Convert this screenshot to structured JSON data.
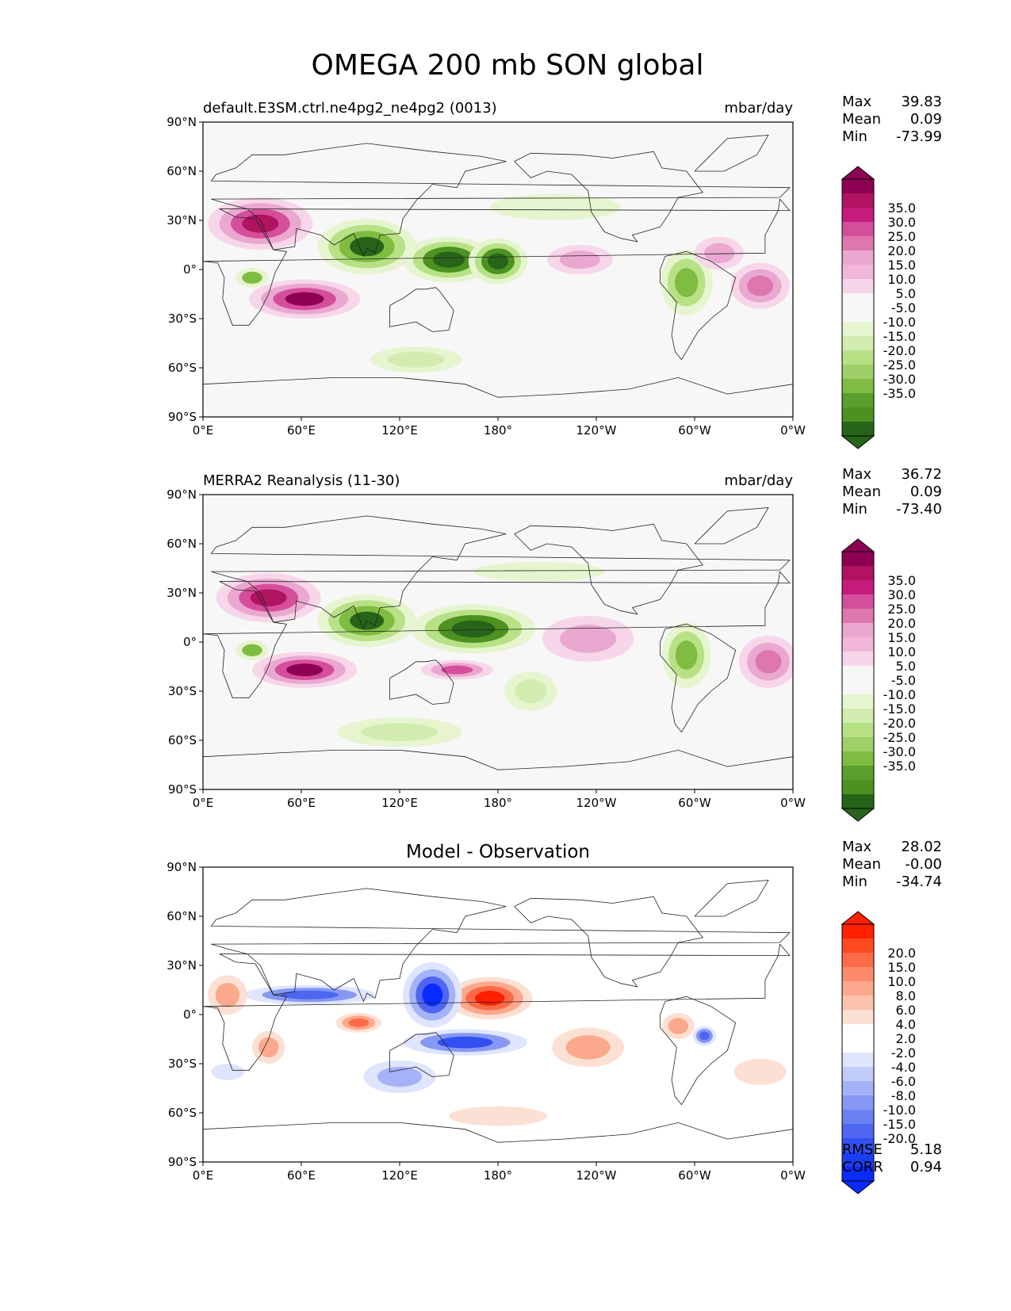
{
  "title": "OMEGA 200 mb SON global",
  "x_ticks": [
    "0°E",
    "60°E",
    "120°E",
    "180°",
    "120°W",
    "60°W",
    "0°W"
  ],
  "y_ticks": [
    "90°N",
    "60°N",
    "30°N",
    "0°",
    "30°S",
    "60°S",
    "90°S"
  ],
  "panels": [
    {
      "title_left": "default.E3SM.ctrl.ne4pg2_ne4pg2 (0013)",
      "title_center": "",
      "title_right": "mbar/day",
      "stats": {
        "labels": [
          "Max",
          "Mean",
          "Min"
        ],
        "values": [
          "39.83",
          "0.09",
          "-73.99"
        ]
      },
      "cbar_ticks": [
        "35.0",
        "30.0",
        "25.0",
        "20.0",
        "15.0",
        "10.0",
        "5.0",
        "-5.0",
        "-10.0",
        "-15.0",
        "-20.0",
        "-25.0",
        "-30.0",
        "-35.0"
      ],
      "cbar_colors": [
        "#8e0152",
        "#b0135f",
        "#c51b7d",
        "#d54e9c",
        "#de77ae",
        "#eaa8d0",
        "#f1b6da",
        "#f7d6ea",
        "#f7f7f7",
        "#f7f7f7",
        "#e6f5d0",
        "#d2ecb0",
        "#b8e186",
        "#9fcf68",
        "#7fbc41",
        "#5a9e2d",
        "#4d9221",
        "#276419"
      ],
      "cbar_top": "#8e0152",
      "cbar_bottom": "#276419",
      "blobs": [
        {
          "lon": 35,
          "lat": 28,
          "rx": 32,
          "ry": 16,
          "levels": [
            "#f7d6ea",
            "#eaa8d0",
            "#d54e9c",
            "#b0135f"
          ]
        },
        {
          "lon": 62,
          "lat": -18,
          "rx": 34,
          "ry": 12,
          "levels": [
            "#f7d6ea",
            "#eaa8d0",
            "#d54e9c",
            "#8e0152"
          ]
        },
        {
          "lon": 100,
          "lat": 14,
          "rx": 30,
          "ry": 17,
          "levels": [
            "#e6f5d0",
            "#b8e186",
            "#7fbc41",
            "#276419"
          ]
        },
        {
          "lon": 150,
          "lat": 6,
          "rx": 28,
          "ry": 14,
          "levels": [
            "#e6f5d0",
            "#b8e186",
            "#4d9221",
            "#276419"
          ]
        },
        {
          "lon": 180,
          "lat": 5,
          "rx": 18,
          "ry": 14,
          "levels": [
            "#e6f5d0",
            "#b8e186",
            "#4d9221",
            "#276419"
          ]
        },
        {
          "lon": 295,
          "lat": -8,
          "rx": 16,
          "ry": 20,
          "levels": [
            "#e6f5d0",
            "#b8e186",
            "#7fbc41"
          ]
        },
        {
          "lon": 230,
          "lat": 6,
          "rx": 20,
          "ry": 9,
          "levels": [
            "#f7d6ea",
            "#eaa8d0"
          ]
        },
        {
          "lon": 340,
          "lat": -10,
          "rx": 18,
          "ry": 14,
          "levels": [
            "#f7d6ea",
            "#eaa8d0",
            "#de77ae"
          ]
        },
        {
          "lon": 130,
          "lat": -55,
          "rx": 28,
          "ry": 8,
          "levels": [
            "#e6f5d0",
            "#d2ecb0"
          ]
        },
        {
          "lon": 30,
          "lat": -5,
          "rx": 10,
          "ry": 6,
          "levels": [
            "#e6f5d0",
            "#7fbc41"
          ]
        },
        {
          "lon": 215,
          "lat": 38,
          "rx": 40,
          "ry": 8,
          "levels": [
            "#e6f5d0"
          ]
        },
        {
          "lon": 315,
          "lat": 10,
          "rx": 15,
          "ry": 10,
          "levels": [
            "#f7d6ea",
            "#eaa8d0"
          ]
        }
      ]
    },
    {
      "title_left": "MERRA2 Reanalysis (11-30)",
      "title_center": "",
      "title_right": "mbar/day",
      "stats": {
        "labels": [
          "Max",
          "Mean",
          "Min"
        ],
        "values": [
          "36.72",
          "0.09",
          "-73.40"
        ]
      },
      "cbar_ticks": [
        "35.0",
        "30.0",
        "25.0",
        "20.0",
        "15.0",
        "10.0",
        "5.0",
        "-5.0",
        "-10.0",
        "-15.0",
        "-20.0",
        "-25.0",
        "-30.0",
        "-35.0"
      ],
      "cbar_colors": [
        "#8e0152",
        "#b0135f",
        "#c51b7d",
        "#d54e9c",
        "#de77ae",
        "#eaa8d0",
        "#f1b6da",
        "#f7d6ea",
        "#f7f7f7",
        "#f7f7f7",
        "#e6f5d0",
        "#d2ecb0",
        "#b8e186",
        "#9fcf68",
        "#7fbc41",
        "#5a9e2d",
        "#4d9221",
        "#276419"
      ],
      "cbar_top": "#8e0152",
      "cbar_bottom": "#276419",
      "blobs": [
        {
          "lon": 40,
          "lat": 27,
          "rx": 32,
          "ry": 15,
          "levels": [
            "#f7d6ea",
            "#eaa8d0",
            "#d54e9c",
            "#b0135f"
          ]
        },
        {
          "lon": 62,
          "lat": -17,
          "rx": 32,
          "ry": 11,
          "levels": [
            "#f7d6ea",
            "#eaa8d0",
            "#d54e9c",
            "#8e0152"
          ]
        },
        {
          "lon": 100,
          "lat": 13,
          "rx": 30,
          "ry": 16,
          "levels": [
            "#e6f5d0",
            "#b8e186",
            "#7fbc41",
            "#276419"
          ]
        },
        {
          "lon": 165,
          "lat": 8,
          "rx": 38,
          "ry": 15,
          "levels": [
            "#e6f5d0",
            "#b8e186",
            "#4d9221",
            "#276419"
          ]
        },
        {
          "lon": 295,
          "lat": -8,
          "rx": 15,
          "ry": 20,
          "levels": [
            "#e6f5d0",
            "#b8e186",
            "#7fbc41"
          ]
        },
        {
          "lon": 155,
          "lat": -17,
          "rx": 22,
          "ry": 6,
          "levels": [
            "#f7d6ea",
            "#eaa8d0",
            "#d54e9c"
          ]
        },
        {
          "lon": 235,
          "lat": 2,
          "rx": 28,
          "ry": 14,
          "levels": [
            "#f7d6ea",
            "#eaa8d0"
          ]
        },
        {
          "lon": 345,
          "lat": -12,
          "rx": 18,
          "ry": 16,
          "levels": [
            "#f7d6ea",
            "#eaa8d0",
            "#de77ae"
          ]
        },
        {
          "lon": 120,
          "lat": -55,
          "rx": 38,
          "ry": 9,
          "levels": [
            "#e6f5d0",
            "#d2ecb0"
          ]
        },
        {
          "lon": 30,
          "lat": -5,
          "rx": 10,
          "ry": 6,
          "levels": [
            "#e6f5d0",
            "#7fbc41"
          ]
        },
        {
          "lon": 200,
          "lat": -30,
          "rx": 16,
          "ry": 12,
          "levels": [
            "#e6f5d0",
            "#d2ecb0"
          ]
        },
        {
          "lon": 205,
          "lat": 43,
          "rx": 40,
          "ry": 6,
          "levels": [
            "#e6f5d0"
          ]
        }
      ]
    },
    {
      "title_left": "",
      "title_center": "Model - Observation",
      "title_right": "",
      "stats": {
        "labels": [
          "Max",
          "Mean",
          "Min"
        ],
        "values": [
          "28.02",
          "-0.00",
          "-34.74"
        ]
      },
      "cbar_ticks": [
        "20.0",
        "15.0",
        "10.0",
        "8.0",
        "6.0",
        "4.0",
        "2.0",
        "-2.0",
        "-4.0",
        "-6.0",
        "-8.0",
        "-10.0",
        "-15.0",
        "-20.0"
      ],
      "cbar_colors": [
        "#ff2000",
        "#ff4a20",
        "#fd6a48",
        "#fd8a6c",
        "#fca88c",
        "#fcc2ae",
        "#fde0d4",
        "#ffffff",
        "#ffffff",
        "#dfe4ff",
        "#c2ccfb",
        "#a4b3f8",
        "#8698f4",
        "#6b80f2",
        "#4e66f0",
        "#3050f0",
        "#1c3ef2",
        "#0a2bff"
      ],
      "cbar_top": "#ff2000",
      "cbar_bottom": "#0a2bff",
      "stats_bottom": {
        "labels": [
          "RMSE",
          "CORR"
        ],
        "values": [
          "5.18",
          "0.94"
        ]
      },
      "blobs": [
        {
          "lon": 175,
          "lat": 10,
          "rx": 26,
          "ry": 13,
          "levels": [
            "#fde0d4",
            "#fca88c",
            "#fd6a48",
            "#ff2000"
          ]
        },
        {
          "lon": 140,
          "lat": 12,
          "rx": 18,
          "ry": 20,
          "levels": [
            "#dfe4ff",
            "#a4b3f8",
            "#4e66f0",
            "#0a2bff"
          ]
        },
        {
          "lon": 160,
          "lat": -17,
          "rx": 38,
          "ry": 8,
          "levels": [
            "#dfe4ff",
            "#8698f4",
            "#3050f0"
          ]
        },
        {
          "lon": 65,
          "lat": 12,
          "rx": 40,
          "ry": 6,
          "levels": [
            "#dfe4ff",
            "#8698f4",
            "#4e66f0"
          ]
        },
        {
          "lon": 95,
          "lat": -5,
          "rx": 14,
          "ry": 6,
          "levels": [
            "#fde0d4",
            "#fca88c",
            "#fd6a48"
          ]
        },
        {
          "lon": 15,
          "lat": 12,
          "rx": 12,
          "ry": 12,
          "levels": [
            "#fde0d4",
            "#fca88c"
          ]
        },
        {
          "lon": 40,
          "lat": -20,
          "rx": 10,
          "ry": 10,
          "levels": [
            "#fde0d4",
            "#fca88c"
          ]
        },
        {
          "lon": 235,
          "lat": -20,
          "rx": 22,
          "ry": 12,
          "levels": [
            "#fde0d4",
            "#fca88c"
          ]
        },
        {
          "lon": 290,
          "lat": -7,
          "rx": 10,
          "ry": 8,
          "levels": [
            "#fde0d4",
            "#fca88c"
          ]
        },
        {
          "lon": 306,
          "lat": -13,
          "rx": 7,
          "ry": 6,
          "levels": [
            "#dfe4ff",
            "#8698f4",
            "#4e66f0"
          ]
        },
        {
          "lon": 120,
          "lat": -38,
          "rx": 22,
          "ry": 10,
          "levels": [
            "#dfe4ff",
            "#a4b3f8"
          ]
        },
        {
          "lon": 180,
          "lat": -62,
          "rx": 30,
          "ry": 6,
          "levels": [
            "#fde0d4"
          ]
        },
        {
          "lon": 15,
          "lat": -35,
          "rx": 10,
          "ry": 5,
          "levels": [
            "#dfe4ff"
          ]
        },
        {
          "lon": 340,
          "lat": -35,
          "rx": 16,
          "ry": 8,
          "levels": [
            "#fde0d4"
          ]
        }
      ]
    }
  ]
}
